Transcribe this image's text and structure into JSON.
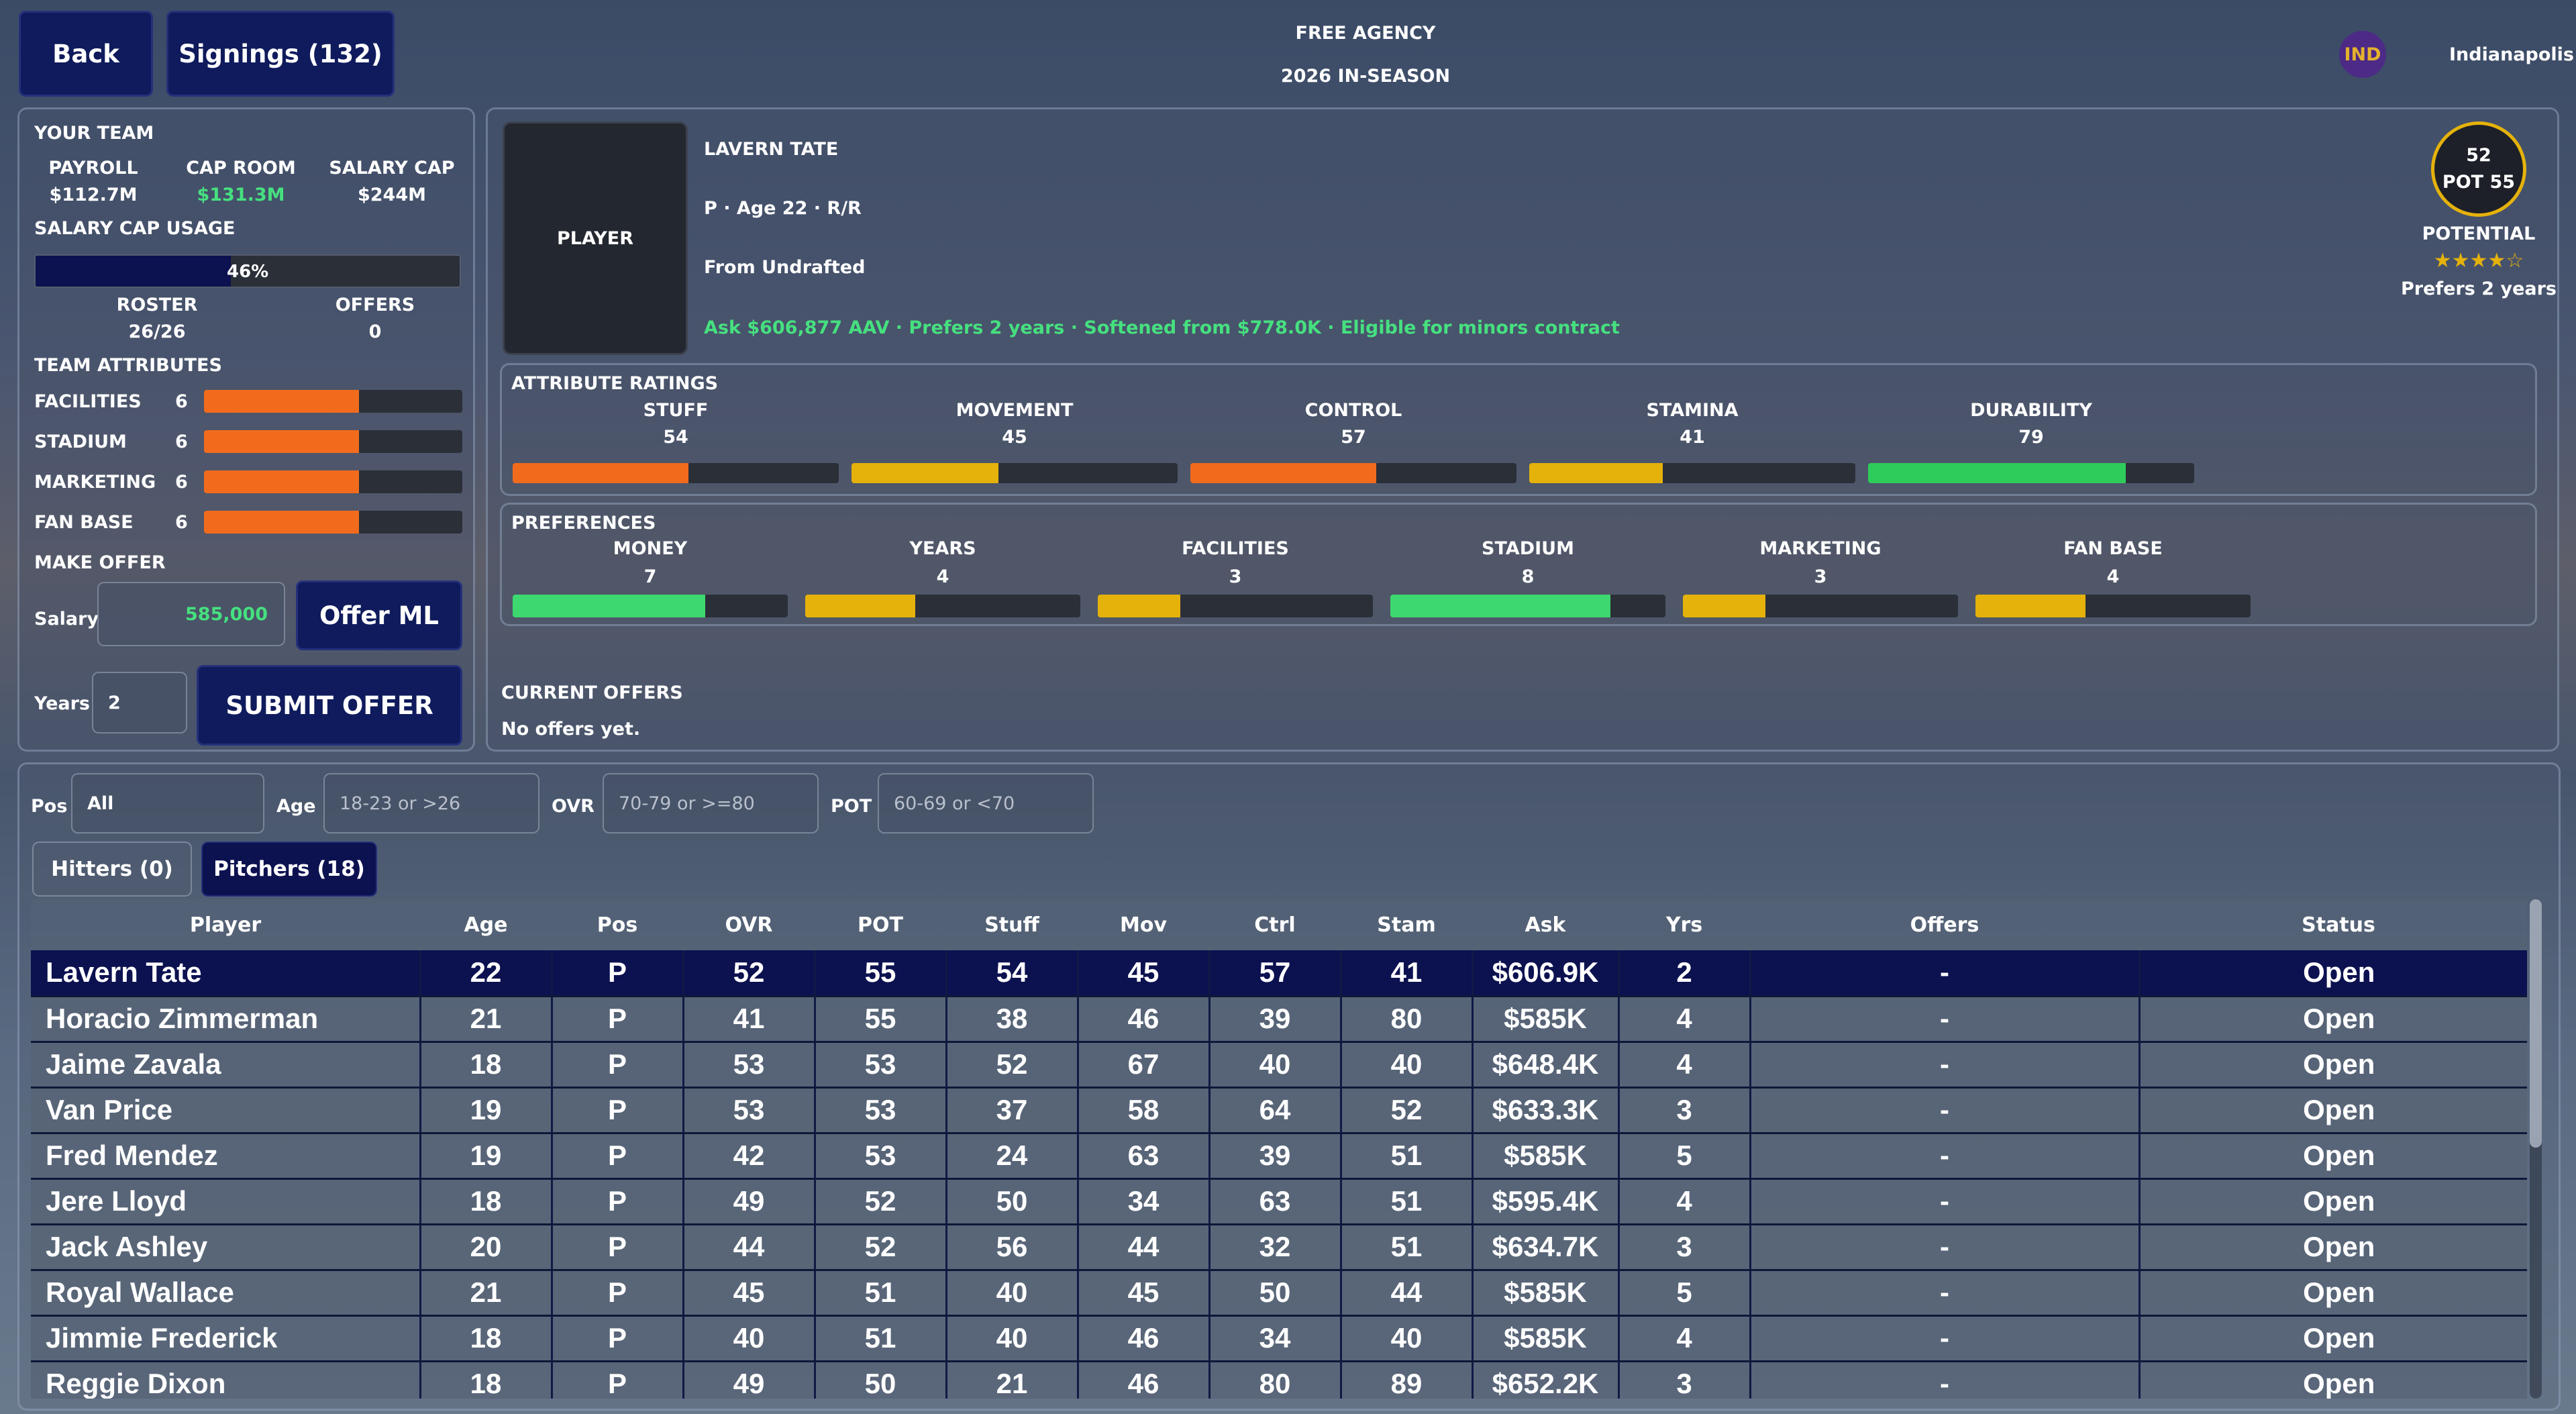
{
  "header": {
    "back": "Back",
    "signings": "Signings (132)",
    "title": "FREE AGENCY",
    "subtitle": "2026 IN-SEASON",
    "team_abbr": "IND",
    "team_name": "Indianapolis"
  },
  "your_team": {
    "title": "YOUR TEAM",
    "payroll_label": "PAYROLL",
    "payroll": "$112.7M",
    "cap_room_label": "CAP ROOM",
    "cap_room": "$131.3M",
    "salary_cap_label": "SALARY CAP",
    "salary_cap": "$244M",
    "cap_usage_label": "SALARY CAP USAGE",
    "cap_usage_pct": 46,
    "cap_usage_text": "46%",
    "roster_label": "ROSTER",
    "roster": "26/26",
    "offers_label": "OFFERS",
    "offers": "0",
    "attributes_title": "TEAM ATTRIBUTES",
    "attributes": [
      {
        "label": "FACILITIES",
        "value": "6",
        "level": 6
      },
      {
        "label": "STADIUM",
        "value": "6",
        "level": 6
      },
      {
        "label": "MARKETING",
        "value": "6",
        "level": 6
      },
      {
        "label": "FAN BASE",
        "value": "6",
        "level": 6
      }
    ],
    "make_offer_title": "MAKE OFFER",
    "salary_label": "Salary",
    "salary_value": "585,000",
    "offer_ml": "Offer ML",
    "years_label": "Years",
    "years_value": "2",
    "submit": "SUBMIT OFFER"
  },
  "player": {
    "photo_label": "PLAYER",
    "name": "LAVERN TATE",
    "bio": "P · Age 22 · R/R",
    "origin": "From Undrafted",
    "ask_line": "Ask $606,877 AAV · Prefers 2 years · Softened from $778.0K · Eligible for minors contract",
    "ovr": "52",
    "pot": "POT 55",
    "potential_label": "POTENTIAL",
    "stars": "★★★★☆",
    "prefers": "Prefers 2 years",
    "attr_title": "ATTRIBUTE RATINGS",
    "attributes": [
      {
        "label": "STUFF",
        "value": "54",
        "pct": 54,
        "color": "#f26b1d"
      },
      {
        "label": "MOVEMENT",
        "value": "45",
        "pct": 45,
        "color": "#e5b20c"
      },
      {
        "label": "CONTROL",
        "value": "57",
        "pct": 57,
        "color": "#f26b1d"
      },
      {
        "label": "STAMINA",
        "value": "41",
        "pct": 41,
        "color": "#e5b20c"
      },
      {
        "label": "DURABILITY",
        "value": "79",
        "pct": 79,
        "color": "#2ecc5a"
      }
    ],
    "pref_title": "PREFERENCES",
    "preferences": [
      {
        "label": "MONEY",
        "value": "7",
        "level": 7,
        "color": "#3ed870"
      },
      {
        "label": "YEARS",
        "value": "4",
        "level": 4,
        "color": "#e5b20c"
      },
      {
        "label": "FACILITIES",
        "value": "3",
        "level": 3,
        "color": "#e5b20c"
      },
      {
        "label": "STADIUM",
        "value": "8",
        "level": 8,
        "color": "#3ed870"
      },
      {
        "label": "MARKETING",
        "value": "3",
        "level": 3,
        "color": "#e5b20c"
      },
      {
        "label": "FAN BASE",
        "value": "4",
        "level": 4,
        "color": "#e5b20c"
      }
    ],
    "offers_title": "CURRENT OFFERS",
    "offers_text": "No offers yet."
  },
  "filters": {
    "pos_label": "Pos",
    "pos_value": "All",
    "age_label": "Age",
    "age_placeholder": "18-23 or >26",
    "ovr_label": "OVR",
    "ovr_placeholder": "70-79 or >=80",
    "pot_label": "POT",
    "pot_placeholder": "60-69 or <70"
  },
  "tabs": {
    "hitters": "Hitters (0)",
    "pitchers": "Pitchers (18)"
  },
  "table": {
    "columns": [
      "Player",
      "Age",
      "Pos",
      "OVR",
      "POT",
      "Stuff",
      "Mov",
      "Ctrl",
      "Stam",
      "Ask",
      "Yrs",
      "Offers",
      "Status"
    ],
    "rows": [
      [
        "Lavern Tate",
        "22",
        "P",
        "52",
        "55",
        "54",
        "45",
        "57",
        "41",
        "$606.9K",
        "2",
        "-",
        "Open"
      ],
      [
        "Horacio Zimmerman",
        "21",
        "P",
        "41",
        "55",
        "38",
        "46",
        "39",
        "80",
        "$585K",
        "4",
        "-",
        "Open"
      ],
      [
        "Jaime Zavala",
        "18",
        "P",
        "53",
        "53",
        "52",
        "67",
        "40",
        "40",
        "$648.4K",
        "4",
        "-",
        "Open"
      ],
      [
        "Van Price",
        "19",
        "P",
        "53",
        "53",
        "37",
        "58",
        "64",
        "52",
        "$633.3K",
        "3",
        "-",
        "Open"
      ],
      [
        "Fred Mendez",
        "19",
        "P",
        "42",
        "53",
        "24",
        "63",
        "39",
        "51",
        "$585K",
        "5",
        "-",
        "Open"
      ],
      [
        "Jere Lloyd",
        "18",
        "P",
        "49",
        "52",
        "50",
        "34",
        "63",
        "51",
        "$595.4K",
        "4",
        "-",
        "Open"
      ],
      [
        "Jack Ashley",
        "20",
        "P",
        "44",
        "52",
        "56",
        "44",
        "32",
        "51",
        "$634.7K",
        "3",
        "-",
        "Open"
      ],
      [
        "Royal Wallace",
        "21",
        "P",
        "45",
        "51",
        "40",
        "45",
        "50",
        "44",
        "$585K",
        "5",
        "-",
        "Open"
      ],
      [
        "Jimmie Frederick",
        "18",
        "P",
        "40",
        "51",
        "40",
        "46",
        "34",
        "40",
        "$585K",
        "4",
        "-",
        "Open"
      ],
      [
        "Reggie Dixon",
        "18",
        "P",
        "49",
        "50",
        "21",
        "46",
        "80",
        "89",
        "$652.2K",
        "3",
        "-",
        "Open"
      ]
    ]
  }
}
